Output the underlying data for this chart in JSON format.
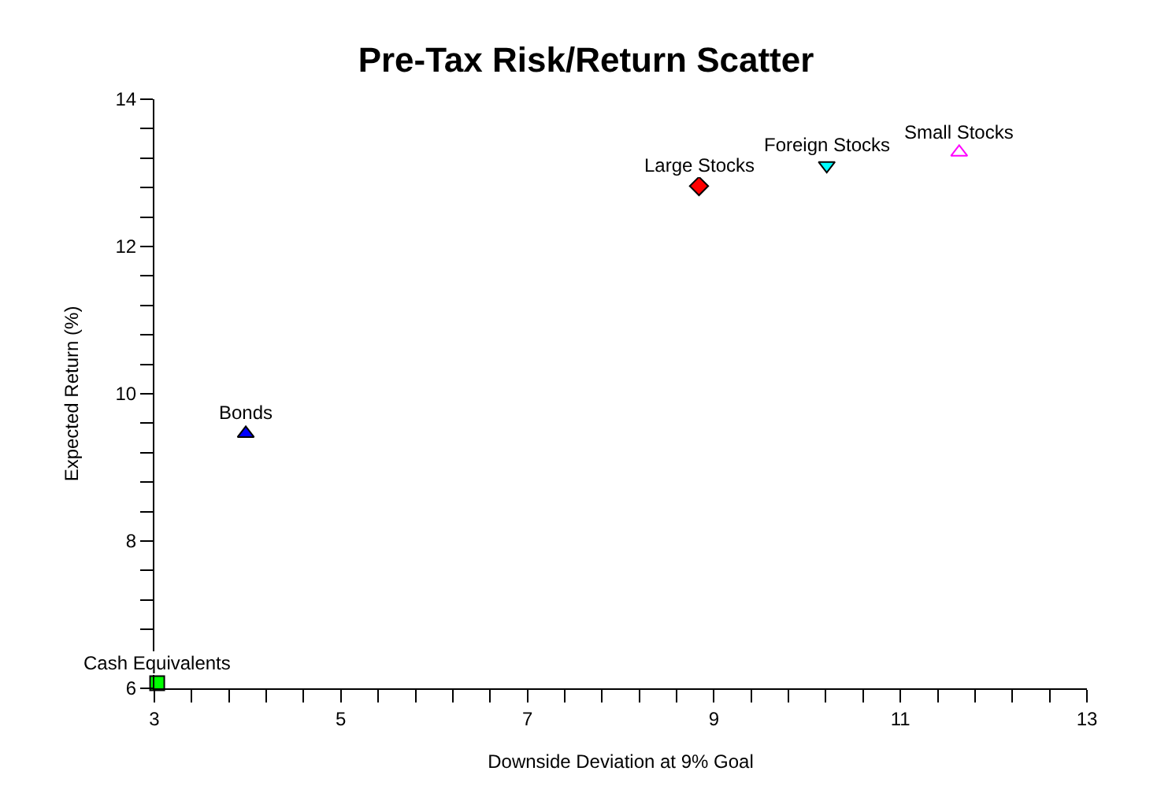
{
  "chart_data": {
    "type": "scatter",
    "title": "Pre-Tax Risk/Return Scatter",
    "xlabel": "Downside Deviation at 9% Goal",
    "ylabel": "Expected Return (%)",
    "xlim": [
      3,
      13
    ],
    "xticks": [
      3,
      {
        "value": 3.4,
        "label": null
      },
      {
        "value": 3.8,
        "label": null
      },
      {
        "value": 4.2,
        "label": null
      },
      {
        "value": 4.6,
        "label": null
      },
      5,
      {
        "value": 5.4,
        "label": null
      },
      {
        "value": 5.8,
        "label": null
      },
      {
        "value": 6.2,
        "label": null
      },
      {
        "value": 6.6,
        "label": null
      },
      7,
      {
        "value": 7.4,
        "label": null
      },
      {
        "value": 7.8,
        "label": null
      },
      {
        "value": 8.2,
        "label": null
      },
      {
        "value": 8.6,
        "label": null
      },
      9,
      {
        "value": 9.4,
        "label": null
      },
      {
        "value": 9.8,
        "label": null
      },
      {
        "value": 10.2,
        "label": null
      },
      {
        "value": 10.6,
        "label": null
      },
      11,
      {
        "value": 11.4,
        "label": null
      },
      {
        "value": 11.8,
        "label": null
      },
      {
        "value": 12.2,
        "label": null
      },
      {
        "value": 12.6,
        "label": null
      },
      13
    ],
    "ylim": [
      6,
      14
    ],
    "yticks": [
      6,
      {
        "value": 6.4,
        "label": null
      },
      {
        "value": 6.8,
        "label": null
      },
      {
        "value": 7.2,
        "label": null
      },
      {
        "value": 7.6,
        "label": null
      },
      8,
      {
        "value": 8.4,
        "label": null
      },
      {
        "value": 8.8,
        "label": null
      },
      {
        "value": 9.2,
        "label": null
      },
      {
        "value": 9.6,
        "label": null
      },
      10,
      {
        "value": 10.4,
        "label": null
      },
      {
        "value": 10.8,
        "label": null
      },
      {
        "value": 11.2,
        "label": null
      },
      {
        "value": 11.6,
        "label": null
      },
      12,
      {
        "value": 12.4,
        "label": null
      },
      {
        "value": 12.8,
        "label": null
      },
      {
        "value": 13.2,
        "label": null
      },
      {
        "value": 13.6,
        "label": null
      },
      14
    ],
    "grid": false,
    "legend": false,
    "series": [
      {
        "name": "Cash Equivalents",
        "color": "#00ff00",
        "marker": "square",
        "x": [
          3.03
        ],
        "values": [
          6.07
        ]
      },
      {
        "name": "Bonds",
        "color": "#0000ff",
        "marker": "triangle",
        "x": [
          3.98
        ],
        "values": [
          9.46
        ]
      },
      {
        "name": "Large Stocks",
        "color": "#ff0000",
        "marker": "diamond",
        "x": [
          8.84
        ],
        "values": [
          12.82
        ]
      },
      {
        "name": "Foreign Stocks",
        "color": "#00ffff",
        "marker": "triangle-down",
        "x": [
          10.21
        ],
        "values": [
          13.1
        ]
      },
      {
        "name": "Small Stocks",
        "color": "#ff00ff",
        "marker": "triangle-open",
        "x": [
          11.63
        ],
        "values": [
          13.28
        ]
      }
    ]
  }
}
